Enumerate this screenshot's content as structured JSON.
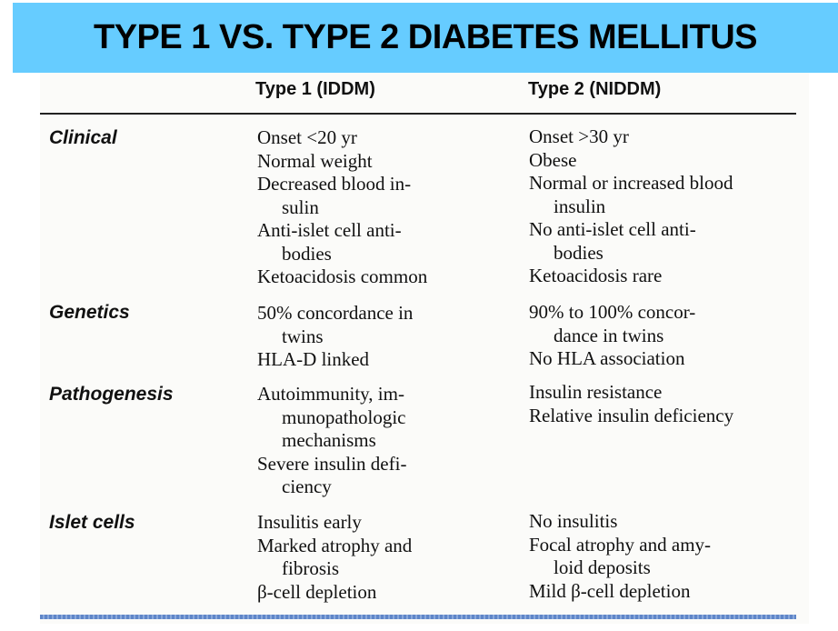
{
  "title": "TYPE 1 VS. TYPE 2 DIABETES MELLITUS",
  "columns": [
    "Type 1 (IDDM)",
    "Type 2 (NIDDM)"
  ],
  "rows": [
    {
      "label": "Clinical",
      "type1": [
        "Onset <20 yr",
        "Normal weight",
        "Decreased blood in-",
        "sulin",
        "Anti-islet cell anti-",
        "bodies",
        "Ketoacidosis common"
      ],
      "type2": [
        "Onset >30 yr",
        "Obese",
        "Normal or increased blood",
        "insulin",
        "No anti-islet cell anti-",
        "bodies",
        "Ketoacidosis rare"
      ]
    },
    {
      "label": "Genetics",
      "type1": [
        "50% concordance in",
        "twins",
        "HLA-D linked"
      ],
      "type2": [
        "90% to 100% concor-",
        "dance in twins",
        "No HLA association"
      ]
    },
    {
      "label": "Pathogenesis",
      "type1": [
        "Autoimmunity, im-",
        "munopathologic",
        "mechanisms",
        "Severe insulin defi-",
        "ciency"
      ],
      "type2": [
        "Insulin resistance",
        "Relative insulin deficiency"
      ]
    },
    {
      "label": "Islet cells",
      "type1": [
        "Insulitis early",
        "Marked atrophy and",
        "fibrosis",
        "β-cell depletion"
      ],
      "type2": [
        "No insulitis",
        "Focal atrophy and amy-",
        "loid deposits",
        "Mild β-cell depletion"
      ]
    }
  ]
}
